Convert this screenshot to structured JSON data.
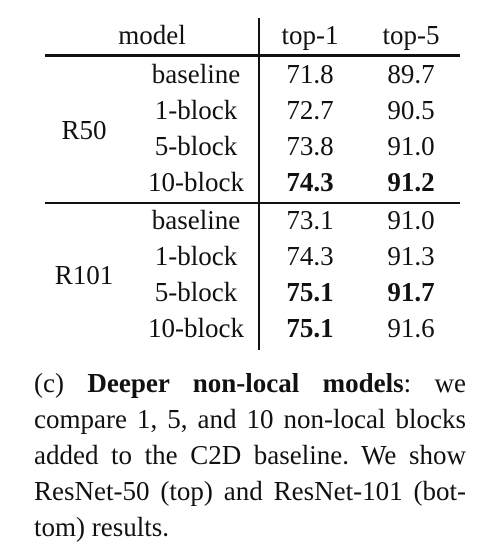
{
  "table": {
    "headers": {
      "model": "model",
      "top1": "top-1",
      "top5": "top-5"
    },
    "groups": [
      {
        "label": "R50",
        "rows": [
          {
            "variant": "baseline",
            "top1": "71.8",
            "top5": "89.7",
            "top1_bold": false,
            "top5_bold": false
          },
          {
            "variant": "1-block",
            "top1": "72.7",
            "top5": "90.5",
            "top1_bold": false,
            "top5_bold": false
          },
          {
            "variant": "5-block",
            "top1": "73.8",
            "top5": "91.0",
            "top1_bold": false,
            "top5_bold": false
          },
          {
            "variant": "10-block",
            "top1": "74.3",
            "top5": "91.2",
            "top1_bold": true,
            "top5_bold": true
          }
        ]
      },
      {
        "label": "R101",
        "rows": [
          {
            "variant": "baseline",
            "top1": "73.1",
            "top5": "91.0",
            "top1_bold": false,
            "top5_bold": false
          },
          {
            "variant": "1-block",
            "top1": "74.3",
            "top5": "91.3",
            "top1_bold": false,
            "top5_bold": false
          },
          {
            "variant": "5-block",
            "top1": "75.1",
            "top5": "91.7",
            "top1_bold": true,
            "top5_bold": true
          },
          {
            "variant": "10-block",
            "top1": "75.1",
            "top5": "91.6",
            "top1_bold": true,
            "top5_bold": false
          }
        ]
      }
    ]
  },
  "caption": {
    "prefix": "(c) ",
    "bold_title": "Deeper non-local models",
    "line1_rest": ":  we",
    "line2": "compare 1, 5, and 10 non-local blocks",
    "line3": "added to the C2D baseline. We show",
    "line4": "ResNet-50 (top) and ResNet-101 (bot-",
    "line5": "tom) results."
  }
}
